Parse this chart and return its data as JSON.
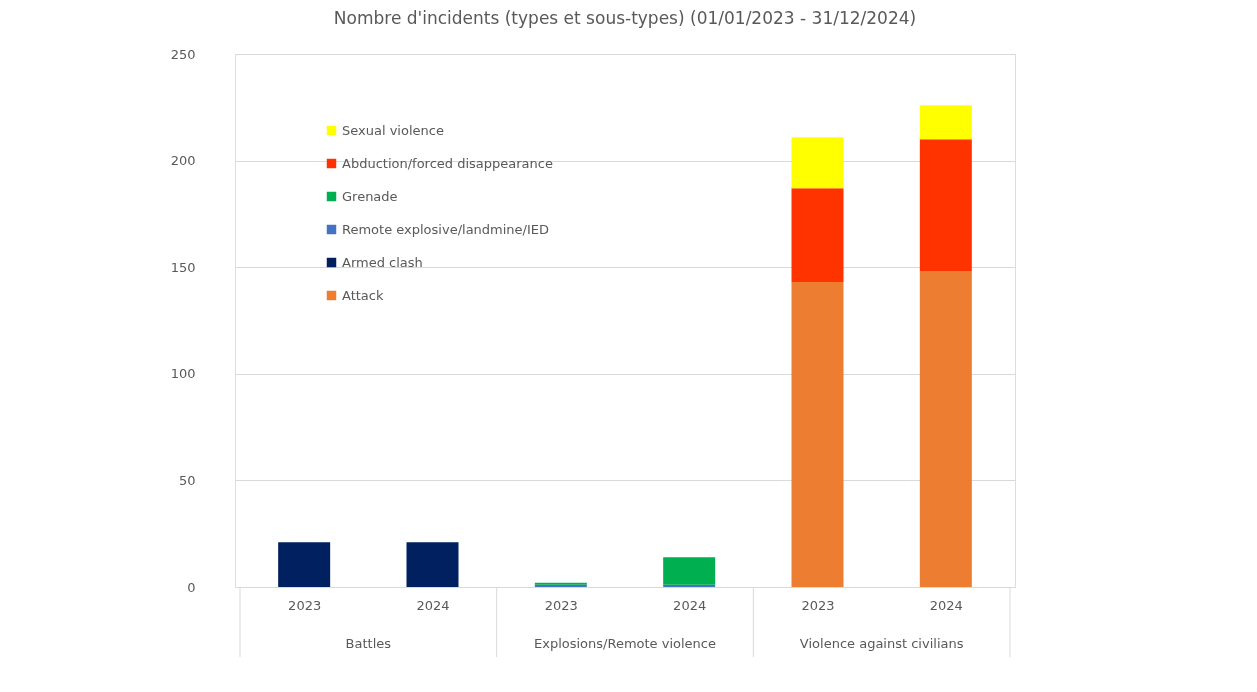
{
  "chart_data": {
    "type": "bar",
    "title": "Nombre d'incidents (types et sous-types) (01/01/2023 - 31/12/2024)",
    "categories": [
      "2023",
      "2024",
      "2023",
      "2024",
      "2023",
      "2024"
    ],
    "annotations": [
      "Battles",
      "Explosions/Remote violence",
      "Violence against civilians"
    ],
    "stacked": true,
    "series": [
      {
        "name": "Attack",
        "color": "#ed7d31",
        "values": [
          0,
          0,
          0,
          0,
          143,
          148
        ]
      },
      {
        "name": "Armed clash",
        "color": "#002060",
        "values": [
          21,
          21,
          0,
          0,
          0,
          0
        ]
      },
      {
        "name": "Remote explosive/landmine/IED",
        "color": "#4472c4",
        "values": [
          0,
          0,
          1,
          1,
          0,
          0
        ]
      },
      {
        "name": "Grenade",
        "color": "#00b050",
        "values": [
          0,
          0,
          1,
          13,
          0,
          0
        ]
      },
      {
        "name": "Abduction/forced disappearance",
        "color": "#ff3300",
        "values": [
          0,
          0,
          0,
          0,
          44,
          62
        ]
      },
      {
        "name": "Sexual violence",
        "color": "#ffff00",
        "values": [
          0,
          0,
          0,
          0,
          24,
          16
        ]
      }
    ],
    "ylim": [
      0,
      250
    ],
    "yticks": [
      0,
      50,
      100,
      150,
      200,
      250
    ],
    "grid": "y",
    "legend": "top left"
  }
}
